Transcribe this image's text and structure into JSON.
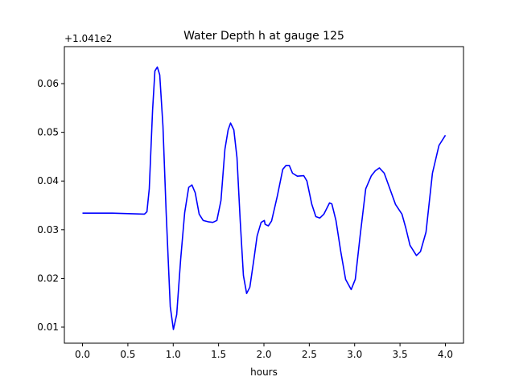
{
  "chart_data": {
    "type": "line",
    "title": "Water Depth h at gauge 125",
    "xlabel": "hours",
    "ylabel": "",
    "y_offset_label": "+1.041e2",
    "xlim": [
      -0.2,
      4.2
    ],
    "ylim": [
      0.0067,
      0.0676
    ],
    "xticks": [
      0.0,
      0.5,
      1.0,
      1.5,
      2.0,
      2.5,
      3.0,
      3.5,
      4.0
    ],
    "xtick_labels": [
      "0.0",
      "0.5",
      "1.0",
      "1.5",
      "2.0",
      "2.5",
      "3.0",
      "3.5",
      "4.0"
    ],
    "yticks": [
      0.01,
      0.02,
      0.03,
      0.04,
      0.05,
      0.06
    ],
    "ytick_labels": [
      "0.01",
      "0.02",
      "0.03",
      "0.04",
      "0.05",
      "0.06"
    ],
    "grid": false,
    "series": [
      {
        "name": "h",
        "color": "#0000ff",
        "x": [
          0.0,
          0.328,
          0.683,
          0.71,
          0.736,
          0.772,
          0.798,
          0.825,
          0.851,
          0.887,
          0.922,
          0.967,
          1.002,
          1.038,
          1.082,
          1.126,
          1.171,
          1.206,
          1.242,
          1.286,
          1.33,
          1.392,
          1.437,
          1.481,
          1.526,
          1.57,
          1.605,
          1.632,
          1.668,
          1.703,
          1.738,
          1.774,
          1.809,
          1.845,
          1.889,
          1.925,
          1.969,
          2.004,
          2.013,
          2.049,
          2.084,
          2.146,
          2.208,
          2.244,
          2.279,
          2.315,
          2.368,
          2.439,
          2.474,
          2.528,
          2.572,
          2.616,
          2.661,
          2.723,
          2.749,
          2.794,
          2.847,
          2.9,
          2.962,
          3.007,
          3.06,
          3.122,
          3.184,
          3.228,
          3.273,
          3.326,
          3.388,
          3.45,
          3.521,
          3.565,
          3.61,
          3.681,
          3.725,
          3.787,
          3.858,
          3.929,
          4.0
        ],
        "y": [
          0.0334,
          0.0334,
          0.0332,
          0.0337,
          0.0384,
          0.0545,
          0.0626,
          0.0634,
          0.0618,
          0.0513,
          0.0335,
          0.0142,
          0.0095,
          0.0126,
          0.0239,
          0.0335,
          0.0387,
          0.0392,
          0.0376,
          0.0332,
          0.0319,
          0.0316,
          0.0315,
          0.0319,
          0.036,
          0.0465,
          0.0505,
          0.0519,
          0.0505,
          0.0448,
          0.0319,
          0.0206,
          0.0169,
          0.0182,
          0.0239,
          0.0287,
          0.0315,
          0.0319,
          0.0311,
          0.0308,
          0.0318,
          0.0368,
          0.0424,
          0.0432,
          0.0432,
          0.0416,
          0.041,
          0.0411,
          0.04,
          0.0352,
          0.0327,
          0.0324,
          0.0332,
          0.0355,
          0.0353,
          0.0319,
          0.0255,
          0.0198,
          0.0177,
          0.0198,
          0.0287,
          0.0384,
          0.0411,
          0.0421,
          0.0427,
          0.0416,
          0.0384,
          0.0352,
          0.0332,
          0.0303,
          0.0268,
          0.0247,
          0.0255,
          0.0295,
          0.0416,
          0.0473,
          0.0494
        ]
      }
    ]
  }
}
